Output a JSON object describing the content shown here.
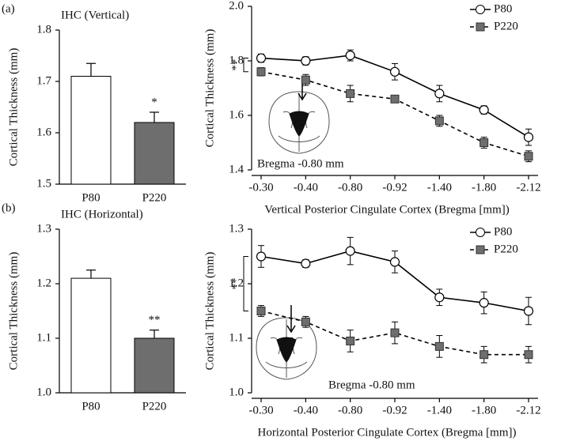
{
  "chart_data": [
    {
      "type": "bar",
      "panel": "(a)",
      "title": "IHC (Vertical)",
      "y_label": "Cortical Thickness (mm)",
      "categories": [
        "P80",
        "P220"
      ],
      "values": [
        1.71,
        1.62
      ],
      "errors": [
        0.025,
        0.02
      ],
      "colors": [
        "#ffffff",
        "#6e6e6e"
      ],
      "ylim": [
        1.5,
        1.8
      ],
      "yticks": [
        1.5,
        1.6,
        1.7,
        1.8
      ],
      "annotations": [
        "*"
      ]
    },
    {
      "type": "line",
      "y_label": "Cortical Thickness (mm)",
      "x_label": "Vertical Posterior Cingulate Cortex (Bregma [mm])",
      "categories": [
        "-0.30",
        "-0.40",
        "-0.80",
        "-0.92",
        "-1.40",
        "-1.80",
        "-2.12"
      ],
      "series": [
        {
          "name": "P80",
          "color": "#000000",
          "marker": "circle",
          "marker_fill": "#ffffff",
          "line_style": "solid",
          "values": [
            1.81,
            1.8,
            1.82,
            1.76,
            1.68,
            1.62,
            1.52
          ],
          "errors": [
            0.015,
            0.015,
            0.02,
            0.03,
            0.03,
            0.015,
            0.03
          ]
        },
        {
          "name": "P220",
          "color": "#000000",
          "marker": "square",
          "marker_fill": "#6e6e6e",
          "line_style": "dashed",
          "values": [
            1.76,
            1.73,
            1.68,
            1.66,
            1.58,
            1.5,
            1.45
          ],
          "errors": [
            0.015,
            0.02,
            0.03,
            0.01,
            0.02,
            0.02,
            0.02
          ]
        }
      ],
      "ylim": [
        1.4,
        2.0
      ],
      "yticks": [
        1.4,
        1.6,
        1.8,
        {
          "value": 2,
          "label": "2.0"
        }
      ],
      "legend": "upper right",
      "annotations": [
        "**",
        "Bregma -0.80 mm"
      ]
    },
    {
      "type": "bar",
      "panel": "(b)",
      "title": "IHC (Horizontal)",
      "y_label": "Cortical Thickness (mm)",
      "categories": [
        "P80",
        "P220"
      ],
      "values": [
        1.21,
        1.1
      ],
      "errors": [
        0.015,
        0.015
      ],
      "colors": [
        "#ffffff",
        "#6e6e6e"
      ],
      "ylim": [
        1.0,
        1.3
      ],
      "yticks": [
        {
          "value": 1,
          "label": "1.0"
        },
        1.1,
        1.2,
        1.3
      ],
      "annotations": [
        "**"
      ]
    },
    {
      "type": "line",
      "y_label": "Cortical Thickness (mm)",
      "x_label": "Horizontal Posterior Cingulate Cortex (Bregma [mm])",
      "categories": [
        "-0.30",
        "-0.40",
        "-0.80",
        "-0.92",
        "-1.40",
        "-1.80",
        "-2.12"
      ],
      "series": [
        {
          "name": "P80",
          "color": "#000000",
          "marker": "circle",
          "marker_fill": "#ffffff",
          "line_style": "solid",
          "values": [
            1.25,
            1.237,
            1.26,
            1.24,
            1.175,
            1.165,
            1.15
          ],
          "errors": [
            0.02,
            0.007,
            0.025,
            0.02,
            0.015,
            0.02,
            0.025
          ]
        },
        {
          "name": "P220",
          "color": "#000000",
          "marker": "square",
          "marker_fill": "#6e6e6e",
          "line_style": "dashed",
          "values": [
            1.15,
            1.13,
            1.095,
            1.11,
            1.085,
            1.07,
            1.07
          ],
          "errors": [
            0.01,
            0.01,
            0.02,
            0.02,
            0.02,
            0.015,
            0.015
          ]
        }
      ],
      "ylim": [
        1.0,
        1.3
      ],
      "yticks": [
        {
          "value": 1,
          "label": "1.0"
        },
        1.1,
        1.2,
        1.3
      ],
      "legend": "upper right",
      "annotations": [
        "**",
        "Bregma -0.80 mm"
      ]
    }
  ]
}
